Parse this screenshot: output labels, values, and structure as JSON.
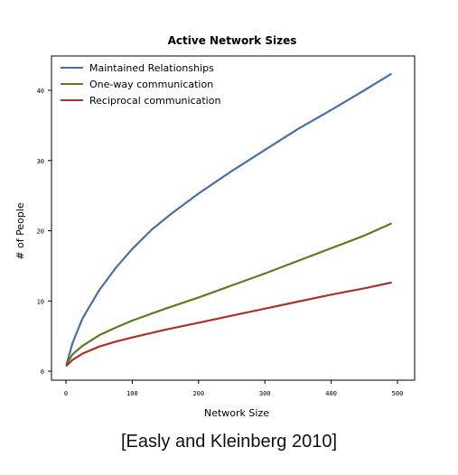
{
  "chart_data": {
    "type": "line",
    "title": "Active Network Sizes",
    "xlabel": "Network Size",
    "ylabel": "# of People",
    "xlim": [
      -10,
      510
    ],
    "ylim": [
      -2,
      44
    ],
    "xticks": [
      0,
      100,
      200,
      300,
      400,
      500
    ],
    "xtick_labels": [
      "0",
      "100",
      "200",
      "300",
      "400",
      "500"
    ],
    "yticks": [
      0,
      10,
      20,
      30,
      40
    ],
    "ytick_labels": [
      "0",
      "10",
      "20",
      "30",
      "40"
    ],
    "grid": false,
    "legend_position": "top-left",
    "series": [
      {
        "name": "Maintained Relationships",
        "color": "#4a6fa5",
        "x": [
          1,
          10,
          25,
          50,
          75,
          100,
          130,
          160,
          200,
          250,
          300,
          350,
          400,
          450,
          490
        ],
        "y": [
          1.0,
          4.0,
          7.5,
          11.5,
          14.7,
          17.4,
          20.2,
          22.5,
          25.3,
          28.5,
          31.5,
          34.5,
          37.2,
          40.0,
          42.3
        ]
      },
      {
        "name": "One-way communication",
        "color": "#5e7a22",
        "x": [
          1,
          10,
          25,
          50,
          75,
          100,
          150,
          200,
          250,
          300,
          350,
          400,
          450,
          490
        ],
        "y": [
          1.0,
          2.4,
          3.6,
          5.1,
          6.2,
          7.2,
          8.9,
          10.5,
          12.2,
          13.9,
          15.7,
          17.5,
          19.3,
          21.0
        ]
      },
      {
        "name": "Reciprocal communication",
        "color": "#a8352b",
        "x": [
          1,
          10,
          25,
          50,
          75,
          100,
          150,
          200,
          250,
          300,
          350,
          400,
          450,
          490
        ],
        "y": [
          0.8,
          1.6,
          2.5,
          3.5,
          4.2,
          4.8,
          5.9,
          6.9,
          7.9,
          8.9,
          9.9,
          10.9,
          11.8,
          12.6
        ]
      }
    ]
  },
  "caption": "[Easly and Kleinberg 2010]"
}
